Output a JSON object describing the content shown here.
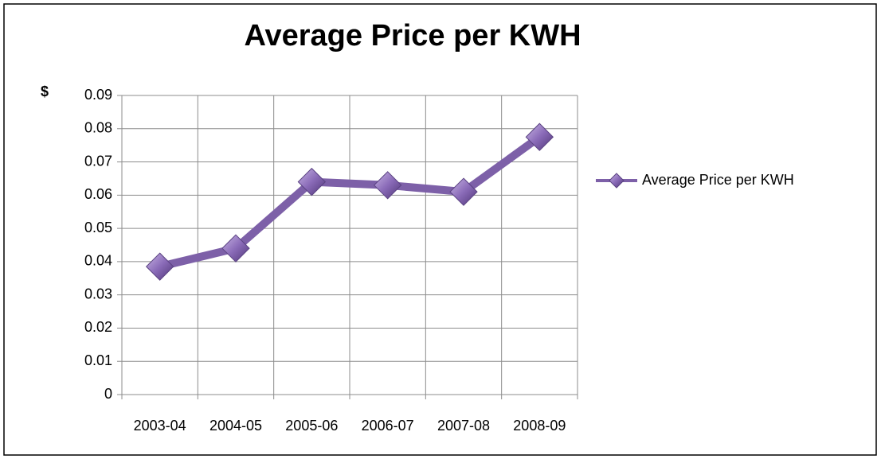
{
  "chart_data": {
    "type": "line",
    "title": "Average Price per KWH",
    "y_label": "$",
    "categories": [
      "2003-04",
      "2004-05",
      "2005-06",
      "2006-07",
      "2007-08",
      "2008-09"
    ],
    "series": [
      {
        "name": "Average Price per KWH",
        "color": "#7d60a8",
        "values": [
          0.0385,
          0.044,
          0.064,
          0.063,
          0.061,
          0.0775
        ]
      }
    ],
    "ylim": [
      0,
      0.09
    ],
    "yticks": [
      0,
      0.01,
      0.02,
      0.03,
      0.04,
      0.05,
      0.06,
      0.07,
      0.08,
      0.09
    ],
    "grid": true,
    "legend": "right"
  }
}
